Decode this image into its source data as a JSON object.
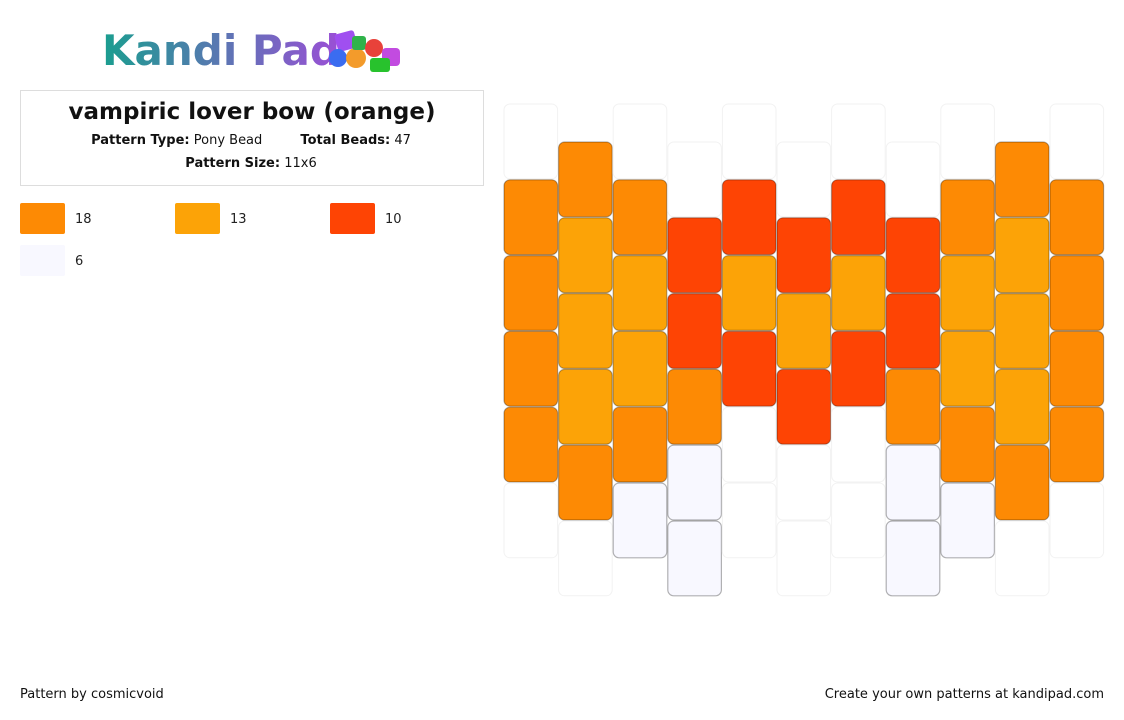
{
  "header": {
    "logo": "Kandi Pad"
  },
  "info": {
    "title": "vampiric lover bow (orange)",
    "type_label": "Pattern Type:",
    "type_value": "Pony Bead",
    "total_label": "Total Beads:",
    "total_value": "47",
    "size_label": "Pattern Size:",
    "size_value": "11x6"
  },
  "legend": [
    {
      "color": "#fd8a04",
      "count": 18
    },
    {
      "color": "#fca307",
      "count": 13
    },
    {
      "color": "#fe4404",
      "count": 10
    },
    {
      "color": "#f8f8ff",
      "count": 6
    }
  ],
  "beads": {
    "columns": [
      [
        null,
        "#fd8a04",
        "#fd8a04",
        "#fd8a04",
        "#fd8a04",
        null
      ],
      [
        "#fd8a04",
        "#fca307",
        "#fca307",
        "#fca307",
        "#fd8a04",
        null
      ],
      [
        null,
        "#fd8a04",
        "#fca307",
        "#fca307",
        "#fd8a04",
        "#f8f8ff"
      ],
      [
        null,
        "#fe4404",
        "#fe4404",
        "#fd8a04",
        "#f8f8ff",
        "#f8f8ff"
      ],
      [
        null,
        "#fe4404",
        "#fca307",
        "#fe4404",
        null,
        null
      ],
      [
        null,
        "#fe4404",
        "#fca307",
        "#fe4404",
        null,
        null
      ],
      [
        null,
        "#fe4404",
        "#fca307",
        "#fe4404",
        null,
        null
      ],
      [
        null,
        "#fe4404",
        "#fe4404",
        "#fd8a04",
        "#f8f8ff",
        "#f8f8ff"
      ],
      [
        null,
        "#fd8a04",
        "#fca307",
        "#fca307",
        "#fd8a04",
        "#f8f8ff"
      ],
      [
        "#fd8a04",
        "#fca307",
        "#fca307",
        "#fca307",
        "#fd8a04",
        null
      ],
      [
        null,
        "#fd8a04",
        "#fd8a04",
        "#fd8a04",
        "#fd8a04",
        null
      ]
    ]
  },
  "footer": {
    "author": "Pattern by cosmicvoid",
    "link": "Create your own patterns at kandipad.com"
  }
}
